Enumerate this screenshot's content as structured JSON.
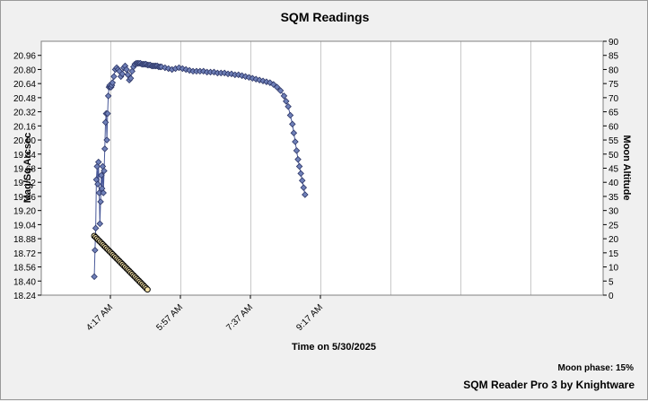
{
  "chart_data": {
    "type": "line",
    "title": "SQM Readings",
    "xlabel": "Time on 5/30/2025",
    "ylabel": "Mag/Sq Arcsec",
    "y2label": "Moon Altitude",
    "x_ticks": [
      "4:17 AM",
      "5:57 AM",
      "7:37 AM",
      "9:17 AM"
    ],
    "y_ticks": [
      "18.24",
      "18.40",
      "18.56",
      "18.72",
      "18.88",
      "19.04",
      "19.20",
      "19.36",
      "19.52",
      "19.68",
      "19.84",
      "20.00",
      "20.16",
      "20.32",
      "20.48",
      "20.64",
      "20.80",
      "20.96"
    ],
    "y2_ticks": [
      "0",
      "5",
      "10",
      "15",
      "20",
      "25",
      "30",
      "35",
      "40",
      "45",
      "50",
      "55",
      "60",
      "65",
      "70",
      "75",
      "80",
      "85",
      "90"
    ],
    "ylim": [
      18.24,
      21.12
    ],
    "y2lim": [
      0,
      90
    ],
    "grid": true,
    "series": [
      {
        "role": "sqm",
        "color": "#4a5a9a",
        "marker": "diamond",
        "x_min_after_4am": [
          -6,
          -5,
          -4,
          -3,
          -2,
          -1,
          0,
          1,
          2,
          3,
          4,
          5,
          6,
          7,
          8,
          9,
          10,
          11,
          12,
          13,
          14,
          15,
          16,
          17,
          18,
          19,
          20,
          22,
          24,
          26,
          28,
          30,
          32,
          34,
          36,
          38,
          40,
          42,
          44,
          46,
          48,
          50,
          52,
          54,
          56,
          58,
          60,
          62,
          64,
          66,
          68,
          70,
          72,
          74,
          76,
          78,
          80,
          82,
          84,
          86,
          88,
          90,
          95,
          100,
          105,
          110,
          115,
          120,
          125,
          130,
          135,
          140,
          145,
          150,
          155,
          160,
          165,
          170,
          175,
          180,
          185,
          190,
          195,
          200,
          205,
          210,
          215,
          220,
          225,
          230,
          235,
          240,
          245,
          250,
          255,
          260,
          265,
          268,
          271,
          274,
          277,
          279,
          281,
          283,
          285,
          287,
          289,
          291,
          293,
          295
        ],
        "values": [
          18.45,
          18.75,
          19.0,
          19.55,
          19.7,
          19.5,
          19.75,
          19.4,
          19.05,
          19.3,
          19.6,
          19.45,
          19.7,
          19.4,
          19.65,
          19.9,
          20.2,
          20.3,
          20.0,
          20.3,
          20.5,
          20.6,
          20.62,
          20.6,
          20.6,
          20.62,
          20.65,
          20.72,
          20.8,
          20.82,
          20.8,
          20.78,
          20.72,
          20.75,
          20.82,
          20.84,
          20.8,
          20.74,
          20.68,
          20.7,
          20.78,
          20.83,
          20.86,
          20.87,
          20.87,
          20.87,
          20.87,
          20.86,
          20.86,
          20.86,
          20.86,
          20.85,
          20.85,
          20.85,
          20.84,
          20.84,
          20.84,
          20.84,
          20.84,
          20.83,
          20.83,
          20.83,
          20.82,
          20.81,
          20.8,
          20.81,
          20.82,
          20.81,
          20.8,
          20.79,
          20.78,
          20.78,
          20.78,
          20.78,
          20.77,
          20.77,
          20.77,
          20.76,
          20.76,
          20.76,
          20.75,
          20.75,
          20.74,
          20.74,
          20.73,
          20.72,
          20.71,
          20.7,
          20.69,
          20.68,
          20.67,
          20.66,
          20.65,
          20.63,
          20.6,
          20.56,
          20.5,
          20.44,
          20.38,
          20.28,
          20.18,
          20.08,
          19.98,
          19.88,
          19.78,
          19.7,
          19.62,
          19.54,
          19.46,
          19.38
        ]
      },
      {
        "role": "moon_altitude",
        "color": "#000000",
        "fill": "#f3e0a6",
        "marker": "circle",
        "x_min_after_4am": [
          -6,
          -4,
          -2,
          0,
          2,
          4,
          6,
          8,
          10,
          12,
          14,
          16,
          18,
          20,
          22,
          24,
          26,
          28,
          30,
          32,
          34,
          36,
          38,
          40,
          42,
          44,
          46,
          48,
          50,
          52,
          54,
          56,
          58,
          60,
          62,
          64,
          66,
          68,
          70
        ],
        "values": [
          21,
          20.5,
          20,
          19.5,
          19,
          18.5,
          18,
          17.5,
          17,
          16.5,
          16,
          15.5,
          15,
          14.5,
          14,
          13.5,
          13,
          12.5,
          12,
          11.5,
          11,
          10.5,
          10,
          9.5,
          9,
          8.5,
          8,
          7.5,
          7,
          6.5,
          6,
          5.5,
          5,
          4.5,
          4,
          3.5,
          3,
          2.5,
          2
        ]
      }
    ]
  },
  "footer": {
    "moon_phase": "Moon phase: 15%",
    "credit": "SQM Reader Pro 3 by Knightware"
  }
}
